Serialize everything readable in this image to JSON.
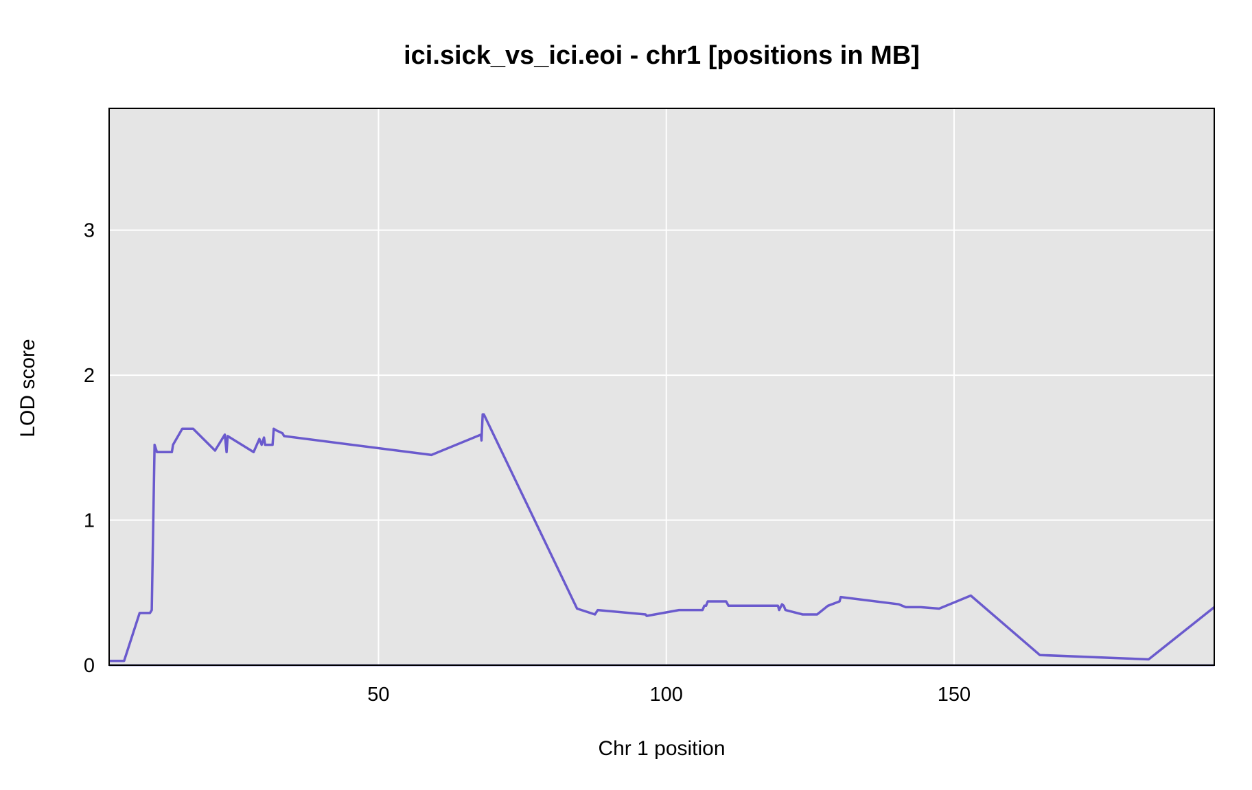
{
  "chart_data": {
    "type": "line",
    "title": "ici.sick_vs_ici.eoi - chr1 [positions in MB]",
    "xlabel": "Chr 1 position",
    "ylabel": "LOD score",
    "xlim": [
      3.2,
      195.2
    ],
    "ylim": [
      0,
      3.84
    ],
    "x_ticks": [
      50,
      100,
      150
    ],
    "y_ticks": [
      0,
      1,
      2,
      3
    ],
    "grid": true,
    "background_color": "#e5e5e5",
    "grid_color": "#ffffff",
    "baseline_color": "#1f1fa8",
    "series": [
      {
        "color": "#6a5acd",
        "x": [
          3.2,
          5.8,
          8.5,
          10.3,
          10.6,
          11.1,
          11.5,
          11.9,
          14.1,
          14.3,
          15.9,
          17.8,
          21.6,
          23.3,
          23.6,
          23.8,
          28.3,
          29.3,
          29.7,
          30.1,
          30.3,
          31.6,
          31.8,
          32.2,
          33.3,
          33.6,
          59.2,
          67.8,
          67.9,
          68.1,
          68.3,
          84.5,
          87.6,
          88.1,
          96.4,
          96.6,
          102.2,
          106.3,
          106.6,
          106.9,
          107.2,
          110.4,
          110.8,
          119.4,
          119.6,
          120.1,
          120.4,
          120.7,
          123.7,
          126.2,
          128.1,
          130.1,
          130.3,
          140.4,
          141.6,
          144.2,
          147.4,
          152.9,
          164.9,
          183.8,
          195.2
        ],
        "y": [
          0.03,
          0.03,
          0.36,
          0.36,
          0.38,
          1.52,
          1.47,
          1.47,
          1.47,
          1.52,
          1.63,
          1.63,
          1.48,
          1.59,
          1.47,
          1.58,
          1.47,
          1.56,
          1.52,
          1.57,
          1.52,
          1.52,
          1.63,
          1.62,
          1.6,
          1.58,
          1.45,
          1.59,
          1.55,
          1.73,
          1.73,
          0.39,
          0.35,
          0.38,
          0.35,
          0.34,
          0.38,
          0.38,
          0.41,
          0.41,
          0.44,
          0.44,
          0.41,
          0.41,
          0.38,
          0.42,
          0.41,
          0.38,
          0.35,
          0.35,
          0.41,
          0.44,
          0.47,
          0.42,
          0.4,
          0.4,
          0.39,
          0.48,
          0.07,
          0.04,
          0.4
        ]
      }
    ]
  }
}
